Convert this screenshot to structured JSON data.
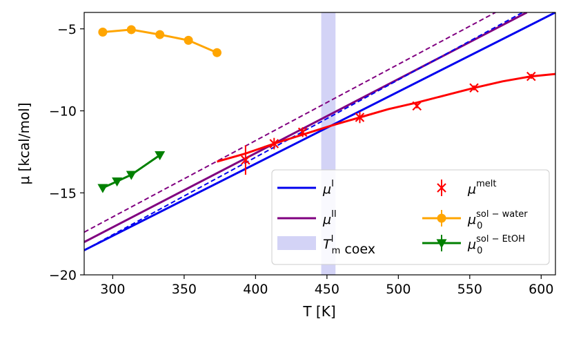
{
  "chart_data": {
    "type": "line",
    "xlabel": "T [K]",
    "ylabel": "μ [kcal/mol]",
    "xlim": [
      280,
      610
    ],
    "ylim": [
      -20,
      -4
    ],
    "xticks": [
      300,
      350,
      400,
      450,
      500,
      550,
      600
    ],
    "yticks": [
      -5,
      -10,
      -15,
      -20
    ],
    "grid": false,
    "legend_position": "lower-right",
    "shaded_band": {
      "label": "T_m^I coex",
      "x_range": [
        446,
        456
      ],
      "color": "#c8c8f4"
    },
    "series": [
      {
        "name": "μ^I",
        "style": "solid",
        "color": "#0000ee",
        "x": [
          280,
          610
        ],
        "y": [
          -18.5,
          -4.0
        ]
      },
      {
        "name": "μ^II",
        "style": "solid",
        "color": "#800080",
        "x": [
          280,
          590
        ],
        "y": [
          -18.0,
          -4.0
        ]
      },
      {
        "style": "dashed",
        "color": "#0000ee",
        "x": [
          280,
          587
        ],
        "y": [
          -18.5,
          -4.0
        ]
      },
      {
        "style": "dashed",
        "color": "#800080",
        "x": [
          280,
          568
        ],
        "y": [
          -17.4,
          -4.0
        ]
      },
      {
        "name": "μ^melt",
        "style": "points-errorbars",
        "color": "#ff0000",
        "x": [
          393,
          413,
          433,
          473,
          513,
          553,
          593
        ],
        "y": [
          -13.0,
          -12.0,
          -11.3,
          -10.4,
          -9.7,
          -8.6,
          -7.9
        ],
        "yerr": [
          0.9,
          0.35,
          0.3,
          0.35,
          0.15,
          0.15,
          0.15
        ]
      },
      {
        "style": "solid",
        "color": "#ff0000",
        "x": [
          373,
          393,
          413,
          433,
          453,
          473,
          493,
          513,
          533,
          553,
          573,
          593,
          610
        ],
        "y": [
          -13.1,
          -12.6,
          -12.0,
          -11.45,
          -10.9,
          -10.4,
          -9.9,
          -9.5,
          -9.05,
          -8.6,
          -8.2,
          -7.9,
          -7.75
        ]
      },
      {
        "name": "μ_0^{sol-water}",
        "style": "line-markers",
        "marker": "circle",
        "color": "#ffa500",
        "x": [
          293,
          313,
          333,
          353,
          373
        ],
        "y": [
          -5.2,
          -5.05,
          -5.35,
          -5.7,
          -6.45
        ]
      },
      {
        "name": "μ_0^{sol-EtOH}",
        "style": "line-markers",
        "marker": "triangle-down",
        "color": "#008000",
        "x": [
          293,
          303,
          313,
          333
        ],
        "y": [
          -14.7,
          -14.3,
          -13.9,
          -12.7
        ]
      }
    ],
    "legend": [
      {
        "main": "μ",
        "sup": "I",
        "sub": "",
        "suffix": "",
        "kind": "line",
        "color": "#0000ee"
      },
      {
        "main": "μ",
        "sup": "melt",
        "sub": "",
        "suffix": "",
        "kind": "errpoint",
        "color": "#ff0000"
      },
      {
        "main": "μ",
        "sup": "II",
        "sub": "",
        "suffix": "",
        "kind": "line",
        "color": "#800080"
      },
      {
        "main": "μ",
        "sup": "sol − water",
        "sub": "0",
        "suffix": "",
        "kind": "line-circle",
        "color": "#ffa500"
      },
      {
        "main": "T",
        "sup": "I",
        "sub": "m",
        "suffix": " coex",
        "kind": "patch",
        "color": "#c8c8f4"
      },
      {
        "main": "μ",
        "sup": "sol − EtOH",
        "sub": "0",
        "suffix": "",
        "kind": "line-triangle",
        "color": "#008000"
      }
    ]
  }
}
